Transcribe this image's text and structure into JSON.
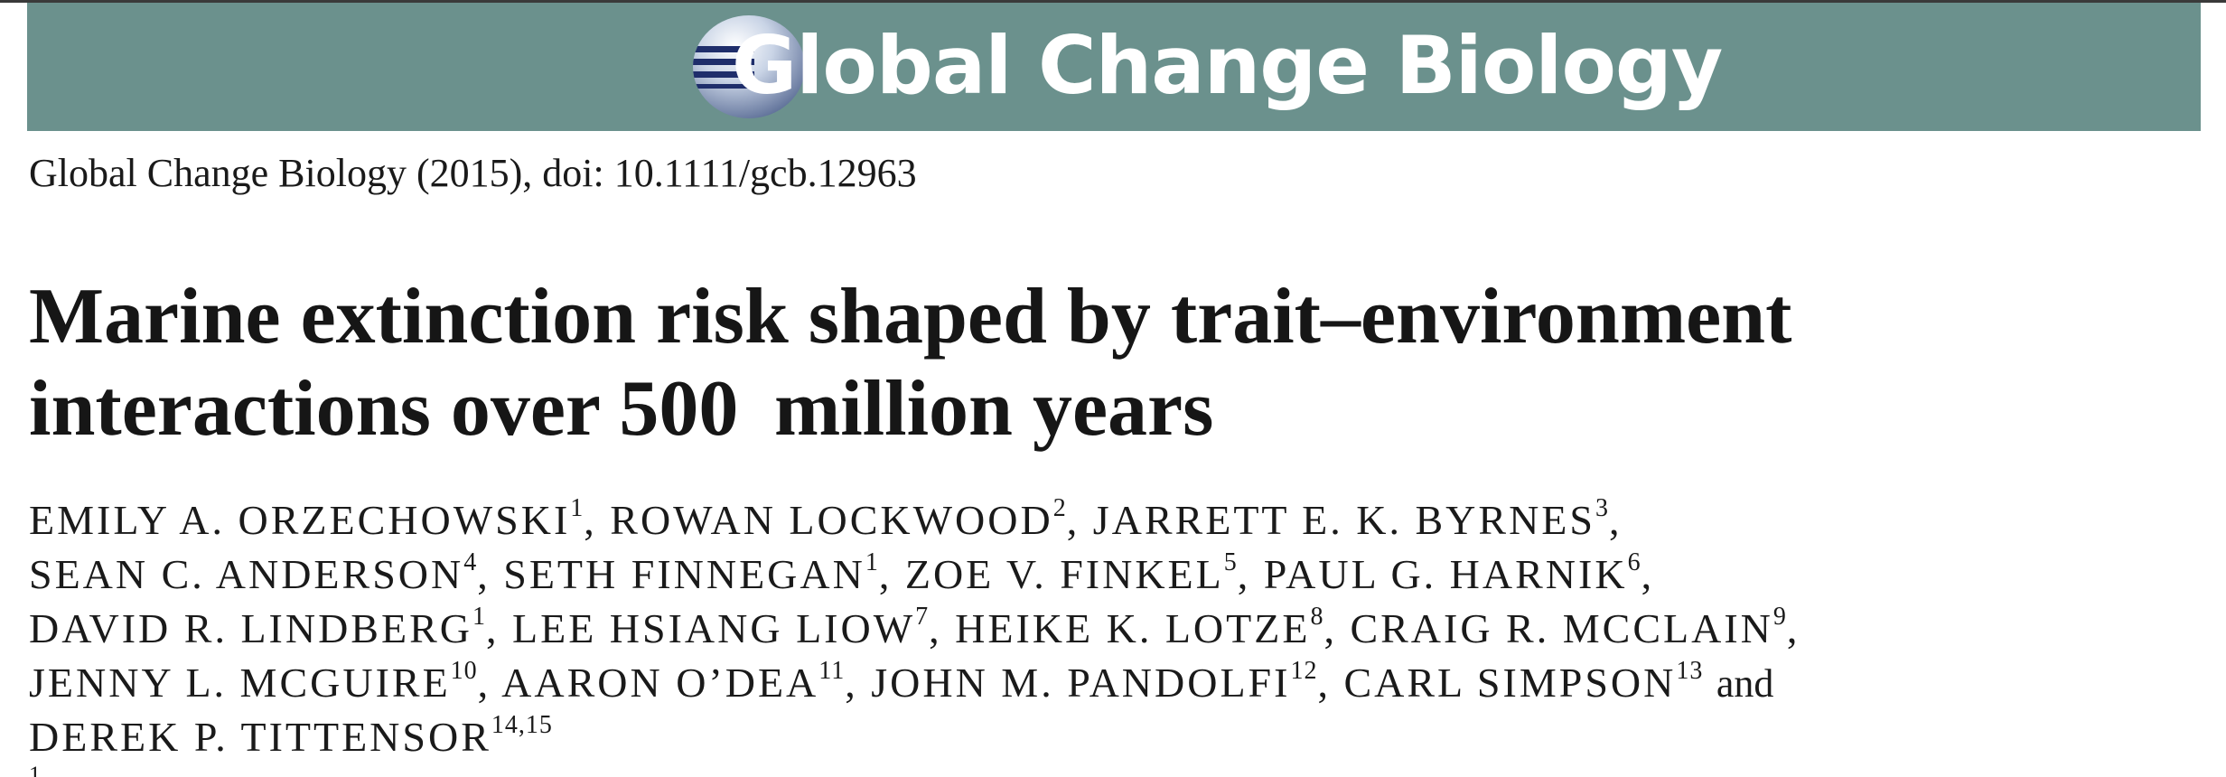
{
  "header": {
    "journal_name": "Global Change Biology",
    "banner_color": "#6b918d",
    "logo_icon": "globe-logo-icon"
  },
  "citation": "Global Change Biology (2015), doi: 10.1111/gcb.12963",
  "title": {
    "lines": [
      "Marine extinction risk shaped by trait–environment",
      "interactions over 500  million years"
    ]
  },
  "authors": [
    {
      "name": "EMILY A. ORZECHOWSKI",
      "aff": "1"
    },
    {
      "name": "ROWAN LOCKWOOD",
      "aff": "2"
    },
    {
      "name": "JARRETT E. K. BYRNES",
      "aff": "3"
    },
    {
      "name": "SEAN C. ANDERSON",
      "aff": "4"
    },
    {
      "name": "SETH FINNEGAN",
      "aff": "1"
    },
    {
      "name": "ZOE V. FINKEL",
      "aff": "5"
    },
    {
      "name": "PAUL G. HARNIK",
      "aff": "6"
    },
    {
      "name": "DAVID R. LINDBERG",
      "aff": "1"
    },
    {
      "name": "LEE HSIANG LIOW",
      "aff": "7"
    },
    {
      "name": "HEIKE K. LOTZE",
      "aff": "8"
    },
    {
      "name": "CRAIG R. MCCLAIN",
      "aff": "9"
    },
    {
      "name": "JENNY L. MCGUIRE",
      "aff": "10"
    },
    {
      "name": "AARON O’DEA",
      "aff": "11"
    },
    {
      "name": "JOHN M. PANDOLFI",
      "aff": "12"
    },
    {
      "name": "CARL SIMPSON",
      "aff": "13"
    },
    {
      "name": "DEREK P. TITTENSOR",
      "aff": "14,15"
    }
  ],
  "author_conjunction": "and",
  "footnote_mark": "1"
}
